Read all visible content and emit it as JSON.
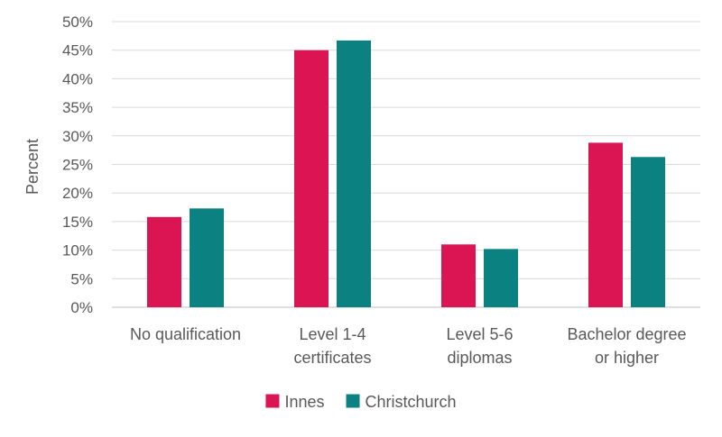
{
  "chart_data": {
    "type": "bar",
    "title": "",
    "xlabel": "",
    "ylabel": "Percent",
    "ylim": [
      0,
      50
    ],
    "y_tick_step": 5,
    "y_tick_format": "percent",
    "grid": true,
    "legend_position": "bottom",
    "categories": [
      [
        "No qualification"
      ],
      [
        "Level 1-4",
        "certificates"
      ],
      [
        "Level 5-6",
        "diplomas"
      ],
      [
        "Bachelor degree",
        "or higher"
      ]
    ],
    "series": [
      {
        "name": "Innes",
        "color": "#DB1554",
        "values": [
          15.8,
          45.0,
          11.0,
          28.8
        ]
      },
      {
        "name": "Christchurch",
        "color": "#0B8281",
        "values": [
          17.3,
          46.7,
          10.2,
          26.3
        ]
      }
    ]
  }
}
